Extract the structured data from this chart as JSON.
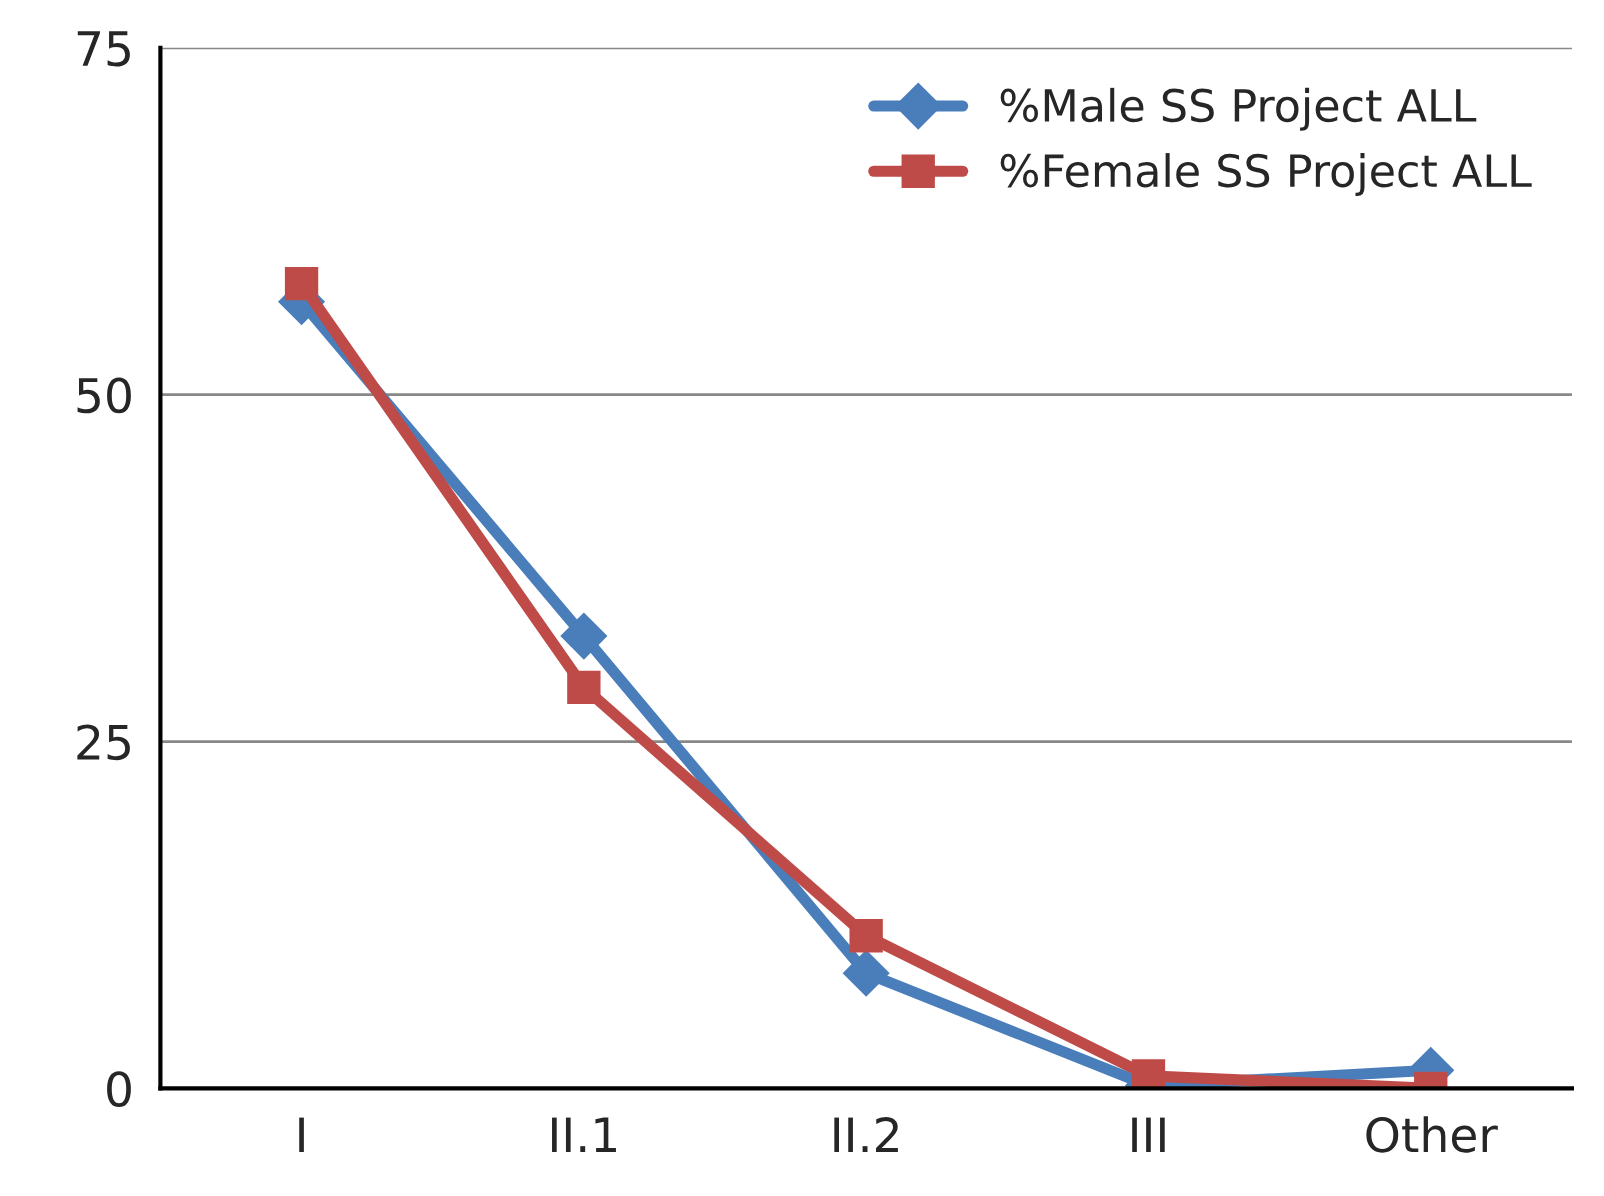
{
  "chart_data": {
    "type": "line",
    "categories": [
      "I",
      "II.1",
      "II.2",
      "III",
      "Other"
    ],
    "series": [
      {
        "name": "%Male SS Project ALL",
        "color": "#4a7ebb",
        "marker": "diamond",
        "values": [
          56.7,
          32.6,
          8.3,
          0.2,
          1.3
        ]
      },
      {
        "name": "%Female SS Project ALL",
        "color": "#be4b48",
        "marker": "square",
        "values": [
          58.0,
          28.9,
          11.0,
          0.9,
          0
        ]
      }
    ],
    "ylim": [
      0,
      75
    ],
    "yticks": [
      0,
      25,
      50,
      75
    ],
    "grid": "y",
    "legend": "top right",
    "line_style": "solid"
  }
}
